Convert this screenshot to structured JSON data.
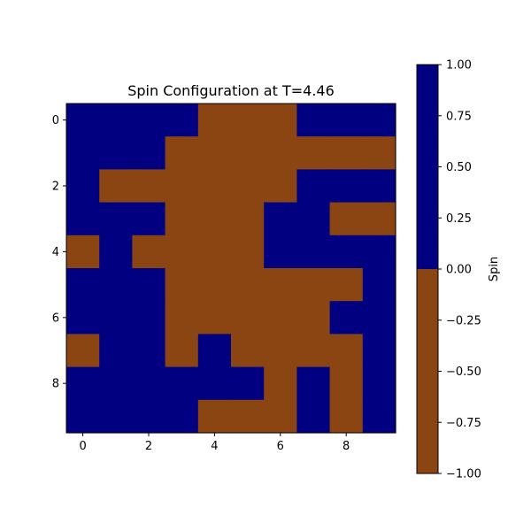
{
  "chart_data": {
    "type": "heatmap",
    "title": "Spin Configuration at T=4.46",
    "xlabel": "",
    "ylabel": "",
    "x_ticks": [
      0,
      2,
      4,
      6,
      8
    ],
    "y_ticks": [
      0,
      2,
      4,
      6,
      8
    ],
    "x_range": [
      -0.5,
      9.5
    ],
    "y_range": [
      -0.5,
      9.5
    ],
    "grid": [
      [
        1,
        1,
        1,
        1,
        -1,
        -1,
        -1,
        1,
        1,
        1
      ],
      [
        1,
        1,
        1,
        -1,
        -1,
        -1,
        -1,
        -1,
        -1,
        -1
      ],
      [
        1,
        -1,
        -1,
        -1,
        -1,
        -1,
        -1,
        1,
        1,
        1
      ],
      [
        1,
        1,
        1,
        -1,
        -1,
        -1,
        1,
        1,
        -1,
        -1
      ],
      [
        -1,
        1,
        -1,
        -1,
        -1,
        -1,
        1,
        1,
        1,
        1
      ],
      [
        1,
        1,
        1,
        -1,
        -1,
        -1,
        -1,
        -1,
        -1,
        1
      ],
      [
        1,
        1,
        1,
        -1,
        -1,
        -1,
        -1,
        -1,
        1,
        1
      ],
      [
        -1,
        1,
        1,
        -1,
        1,
        -1,
        -1,
        -1,
        -1,
        1
      ],
      [
        1,
        1,
        1,
        1,
        1,
        1,
        -1,
        1,
        -1,
        1
      ],
      [
        1,
        1,
        1,
        1,
        -1,
        -1,
        -1,
        1,
        -1,
        1
      ]
    ],
    "colormap": {
      "positive_color": "#000080",
      "negative_color": "#8b4513"
    },
    "colorbar": {
      "label": "Spin",
      "range": [
        -1.0,
        1.0
      ],
      "ticks": [
        "1.00",
        "0.75",
        "0.50",
        "0.25",
        "0.00",
        "−0.25",
        "−0.50",
        "−0.75",
        "−1.00"
      ],
      "tick_values": [
        1.0,
        0.75,
        0.5,
        0.25,
        0.0,
        -0.25,
        -0.5,
        -0.75,
        -1.0
      ]
    }
  }
}
